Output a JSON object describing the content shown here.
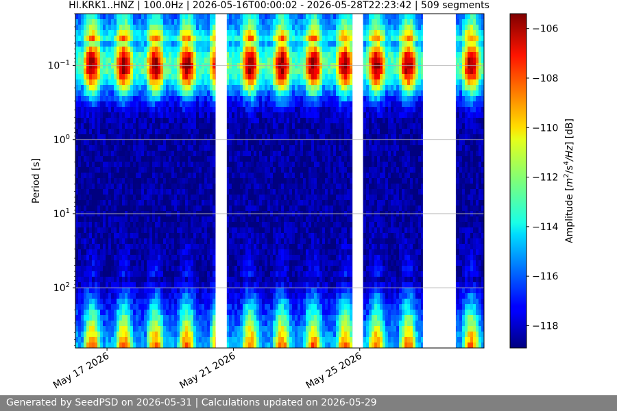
{
  "chart_data": {
    "type": "heatmap",
    "title": "HI.KRK1..HNZ | 100.0Hz | 2026-05-16T00:00:02 - 2026-05-28T22:23:42 | 509 segments",
    "ylabel": "Period [s]",
    "colorbar_label_prefix": "Amplitude [",
    "colorbar_label_unit": "m",
    "colorbar_label_mid": "/s",
    "colorbar_label_mid2": "/Hz",
    "colorbar_label_suffix": "] [dB]",
    "colorbar_exp1": "2",
    "colorbar_exp2": "4",
    "y_scale": "log",
    "y_inverted": true,
    "ylim": [
      0.02,
      650
    ],
    "y_ticks": [
      {
        "value": 0.1,
        "base": "10",
        "exp": "−1"
      },
      {
        "value": 1,
        "base": "10",
        "exp": "0"
      },
      {
        "value": 10,
        "base": "10",
        "exp": "1"
      },
      {
        "value": 100,
        "base": "10",
        "exp": "2"
      }
    ],
    "x_type": "date",
    "xlim": [
      "2026-05-16",
      "2026-05-28T22:24"
    ],
    "x_ticks": [
      {
        "date": "2026-05-17",
        "label": "May 17 2026"
      },
      {
        "date": "2026-05-21",
        "label": "May 21 2026"
      },
      {
        "date": "2026-05-25",
        "label": "May 25 2026"
      }
    ],
    "grid": true,
    "colormap": "jet",
    "clim": [
      -118.9,
      -105.4
    ],
    "colorbar_ticks": [
      -106,
      -108,
      -110,
      -112,
      -114,
      -116,
      -118
    ],
    "colorbar_tick_labels": [
      "−106",
      "−108",
      "−110",
      "−112",
      "−114",
      "−116",
      "−118"
    ],
    "data_gaps": [
      [
        "2026-05-20T10:30",
        "2026-05-20T19:00"
      ],
      [
        "2026-05-24T18:30",
        "2026-05-25T02:30"
      ],
      [
        "2026-05-27T00:00",
        "2026-05-28T01:00"
      ]
    ],
    "dominant_features": {
      "microseism_peak_period_s": 0.1,
      "microseism_peak_db": -105.5,
      "background_db": -118.5
    }
  },
  "footer": {
    "text": "Generated by SeedPSD on 2026-05-31 | Calculations updated on 2026-05-29"
  }
}
